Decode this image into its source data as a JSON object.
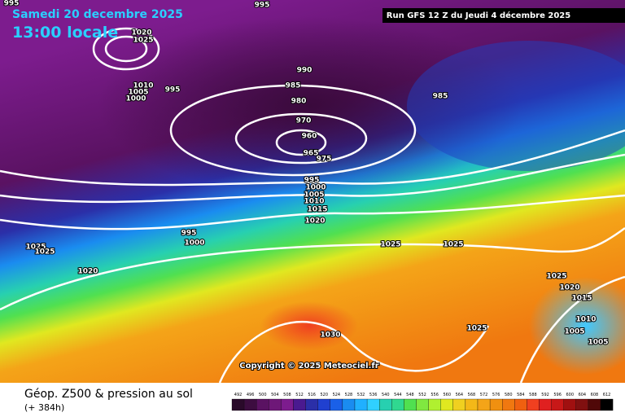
{
  "header": {
    "date": "Samedi 20 decembre 2025",
    "time": "13:00 locale",
    "run": "Run GFS 12 Z du Jeudi 4 décembre 2025"
  },
  "isobar_labels": [
    "995",
    "995",
    "1020",
    "1025",
    "1010",
    "1005",
    "1000",
    "995",
    "990",
    "985",
    "980",
    "970",
    "960",
    "965",
    "975",
    "985",
    "995",
    "1000",
    "1005",
    "1010",
    "1015",
    "1020",
    "995",
    "1000",
    "1025",
    "1025",
    "1020",
    "1025",
    "1025",
    "1030",
    "1025",
    "1025",
    "1020",
    "1015",
    "1010",
    "1005",
    "1005"
  ],
  "copyright": "Copyright © 2025 Meteociel.fr",
  "footer": {
    "title": "Géop. Z500 & pression au sol",
    "lead": "(+ 384h)"
  },
  "legend_scale": [
    492,
    496,
    500,
    504,
    508,
    512,
    516,
    520,
    524,
    528,
    532,
    536,
    540,
    544,
    548,
    552,
    556,
    560,
    564,
    568,
    572,
    576,
    580,
    584,
    588,
    592,
    596,
    600,
    604,
    608,
    612
  ]
}
